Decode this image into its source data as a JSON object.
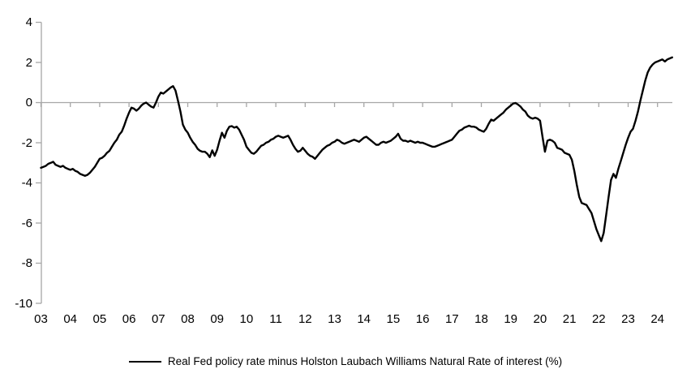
{
  "chart_data": {
    "type": "line",
    "title": "",
    "legend": "Real Fed policy rate minus Holston Laubach Williams Natural Rate of interest (%)",
    "legend_position": "bottom-center",
    "grid": "zero-line-only",
    "colors": {
      "line": "#000000",
      "axis": "#a6a6a6",
      "text": "#000000"
    },
    "ylim": [
      -10,
      4
    ],
    "y_ticks": [
      4,
      2,
      0,
      -2,
      -4,
      -6,
      -8,
      -10
    ],
    "x_tick_labels": [
      "03",
      "04",
      "05",
      "06",
      "07",
      "08",
      "09",
      "10",
      "11",
      "12",
      "13",
      "14",
      "15",
      "16",
      "17",
      "18",
      "19",
      "20",
      "21",
      "22",
      "23",
      "24"
    ],
    "x_tick_start_year": 2003,
    "series": [
      {
        "name": "Real Fed policy rate minus Holston Laubach Williams Natural Rate of interest (%)",
        "start_year": 2003,
        "interval": "monthly",
        "values": [
          -3.25,
          -3.2,
          -3.15,
          -3.05,
          -3.0,
          -2.95,
          -3.1,
          -3.15,
          -3.2,
          -3.15,
          -3.25,
          -3.3,
          -3.35,
          -3.3,
          -3.4,
          -3.45,
          -3.55,
          -3.6,
          -3.65,
          -3.6,
          -3.5,
          -3.35,
          -3.2,
          -3.0,
          -2.8,
          -2.75,
          -2.65,
          -2.5,
          -2.4,
          -2.2,
          -2.0,
          -1.85,
          -1.6,
          -1.45,
          -1.15,
          -0.8,
          -0.5,
          -0.25,
          -0.3,
          -0.4,
          -0.3,
          -0.15,
          -0.05,
          0.0,
          -0.1,
          -0.2,
          -0.25,
          0.0,
          0.3,
          0.5,
          0.45,
          0.55,
          0.65,
          0.75,
          0.82,
          0.6,
          0.1,
          -0.45,
          -1.1,
          -1.35,
          -1.5,
          -1.75,
          -1.95,
          -2.1,
          -2.3,
          -2.4,
          -2.45,
          -2.45,
          -2.55,
          -2.72,
          -2.38,
          -2.65,
          -2.35,
          -1.9,
          -1.5,
          -1.75,
          -1.4,
          -1.2,
          -1.17,
          -1.25,
          -1.2,
          -1.35,
          -1.6,
          -1.85,
          -2.2,
          -2.35,
          -2.5,
          -2.55,
          -2.45,
          -2.3,
          -2.15,
          -2.1,
          -2.0,
          -1.95,
          -1.85,
          -1.8,
          -1.7,
          -1.65,
          -1.7,
          -1.75,
          -1.7,
          -1.65,
          -1.85,
          -2.1,
          -2.3,
          -2.45,
          -2.4,
          -2.25,
          -2.4,
          -2.55,
          -2.65,
          -2.7,
          -2.8,
          -2.65,
          -2.5,
          -2.35,
          -2.25,
          -2.15,
          -2.1,
          -2.0,
          -1.95,
          -1.85,
          -1.9,
          -2.0,
          -2.05,
          -2.0,
          -1.95,
          -1.9,
          -1.85,
          -1.9,
          -1.95,
          -1.85,
          -1.75,
          -1.7,
          -1.8,
          -1.9,
          -2.0,
          -2.1,
          -2.1,
          -2.0,
          -1.95,
          -2.0,
          -1.95,
          -1.9,
          -1.8,
          -1.7,
          -1.55,
          -1.8,
          -1.9,
          -1.9,
          -1.95,
          -1.9,
          -1.95,
          -2.0,
          -1.95,
          -2.0,
          -2.0,
          -2.05,
          -2.1,
          -2.15,
          -2.2,
          -2.2,
          -2.15,
          -2.1,
          -2.05,
          -2.0,
          -1.95,
          -1.9,
          -1.85,
          -1.7,
          -1.55,
          -1.4,
          -1.35,
          -1.25,
          -1.2,
          -1.15,
          -1.2,
          -1.2,
          -1.25,
          -1.35,
          -1.4,
          -1.45,
          -1.3,
          -1.05,
          -0.85,
          -0.9,
          -0.8,
          -0.7,
          -0.6,
          -0.5,
          -0.35,
          -0.25,
          -0.15,
          -0.05,
          -0.02,
          -0.1,
          -0.2,
          -0.35,
          -0.45,
          -0.65,
          -0.75,
          -0.8,
          -0.75,
          -0.8,
          -0.9,
          -1.7,
          -2.45,
          -1.9,
          -1.85,
          -1.9,
          -2.0,
          -2.25,
          -2.3,
          -2.35,
          -2.5,
          -2.55,
          -2.6,
          -2.85,
          -3.4,
          -4.1,
          -4.7,
          -5.0,
          -5.05,
          -5.1,
          -5.3,
          -5.5,
          -5.9,
          -6.3,
          -6.6,
          -6.9,
          -6.5,
          -5.6,
          -4.7,
          -3.85,
          -3.55,
          -3.75,
          -3.3,
          -2.9,
          -2.5,
          -2.1,
          -1.75,
          -1.45,
          -1.3,
          -0.9,
          -0.45,
          0.1,
          0.6,
          1.1,
          1.5,
          1.75,
          1.9,
          2.0,
          2.05,
          2.1,
          2.15,
          2.05,
          2.15,
          2.2,
          2.25
        ]
      }
    ]
  }
}
